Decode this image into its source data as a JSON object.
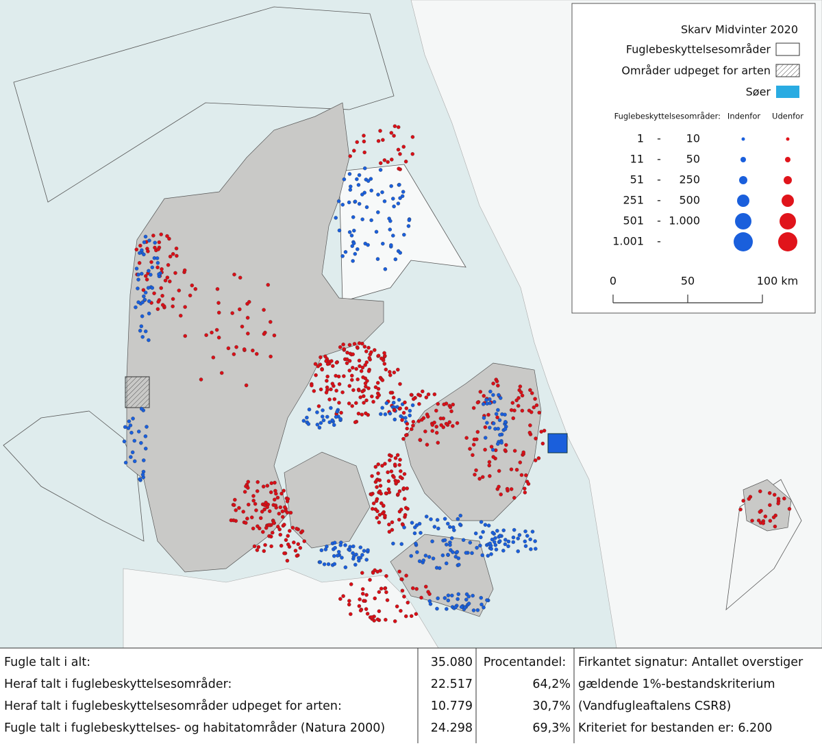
{
  "legend": {
    "title": "Skarv Midvinter 2020",
    "items": [
      "Fuglebeskyttelsesområder",
      "Områder udpeget for arten",
      "Søer"
    ],
    "size_header": {
      "label": "Fuglebeskyttelsesområder:",
      "inside": "Indenfor",
      "outside": "Udenfor"
    },
    "separator": "-",
    "classes": [
      {
        "from": "1",
        "to": "10"
      },
      {
        "from": "11",
        "to": "50"
      },
      {
        "from": "51",
        "to": "250"
      },
      {
        "from": "251",
        "to": "500"
      },
      {
        "from": "501",
        "to": "1.000"
      },
      {
        "from": "1.001"
      }
    ],
    "scale": {
      "lim": [
        0,
        100
      ],
      "ticks": [
        0,
        50,
        {
          "value": 100,
          "label": "100 km"
        }
      ]
    }
  },
  "table": {
    "rows": [
      [
        "Fugle talt i alt:",
        "35.080",
        "Procentandel:",
        "Firkantet signatur: Antallet overstiger"
      ],
      [
        "Heraf talt i fuglebeskyttelsesområder:",
        "22.517",
        "64,2%",
        "gældende 1%-bestandskriterium"
      ],
      [
        "Heraf talt i fuglebeskyttelsesområder udpeget for arten:",
        "10.779",
        "30,7%",
        "(Vandfugleaftalens CSR8)"
      ],
      [
        "Fugle talt i fuglebeskyttelses- og habitatområder (Natura 2000)",
        "24.298",
        "69,3%",
        "Kriteriet for bestanden er: 6.200"
      ]
    ]
  }
}
